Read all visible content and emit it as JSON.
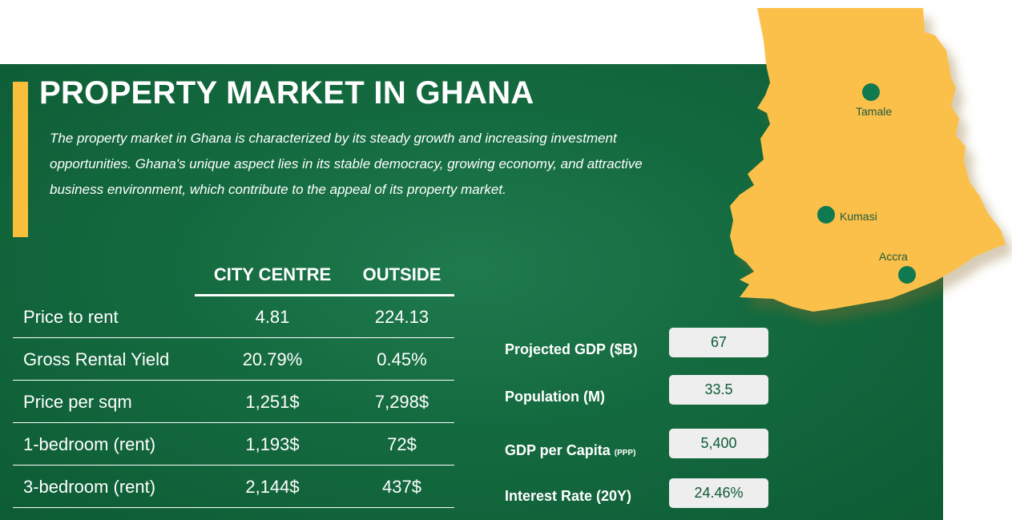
{
  "title": "PROPERTY MARKET IN GHANA",
  "description": "The property market in Ghana is characterized by its steady growth and increasing investment opportunities. Ghana's unique aspect lies in its stable democracy, growing economy, and attractive business environment, which contribute to the appeal of its property market.",
  "table": {
    "headers": [
      "CITY CENTRE",
      "OUTSIDE"
    ],
    "rows": [
      {
        "label": "Price to rent",
        "city": "4.81",
        "outside": "224.13"
      },
      {
        "label": "Gross Rental Yield",
        "city": "20.79%",
        "outside": "0.45%"
      },
      {
        "label": "Price per sqm",
        "city": "1,251$",
        "outside": "7,298$"
      },
      {
        "label": "1-bedroom (rent)",
        "city": "1,193$",
        "outside": "72$"
      },
      {
        "label": "3-bedroom (rent)",
        "city": "2,144$",
        "outside": "437$"
      }
    ]
  },
  "stats": [
    {
      "label": "Projected GDP ($B)",
      "value": "67"
    },
    {
      "label": "Population (M)",
      "value": "33.5"
    },
    {
      "label": "GDP per Capita",
      "suffix": "(PPP)",
      "value": "5,400"
    },
    {
      "label": "Interest Rate (20Y)",
      "value": "24.46%"
    }
  ],
  "map": {
    "cities": [
      "Tamale",
      "Kumasi",
      "Accra"
    ]
  },
  "colors": {
    "background": "#146a3f",
    "accent": "#f8be3c",
    "text": "#ffffff",
    "stat_box": "#eeeeee",
    "city_marker": "#0f7a50"
  }
}
